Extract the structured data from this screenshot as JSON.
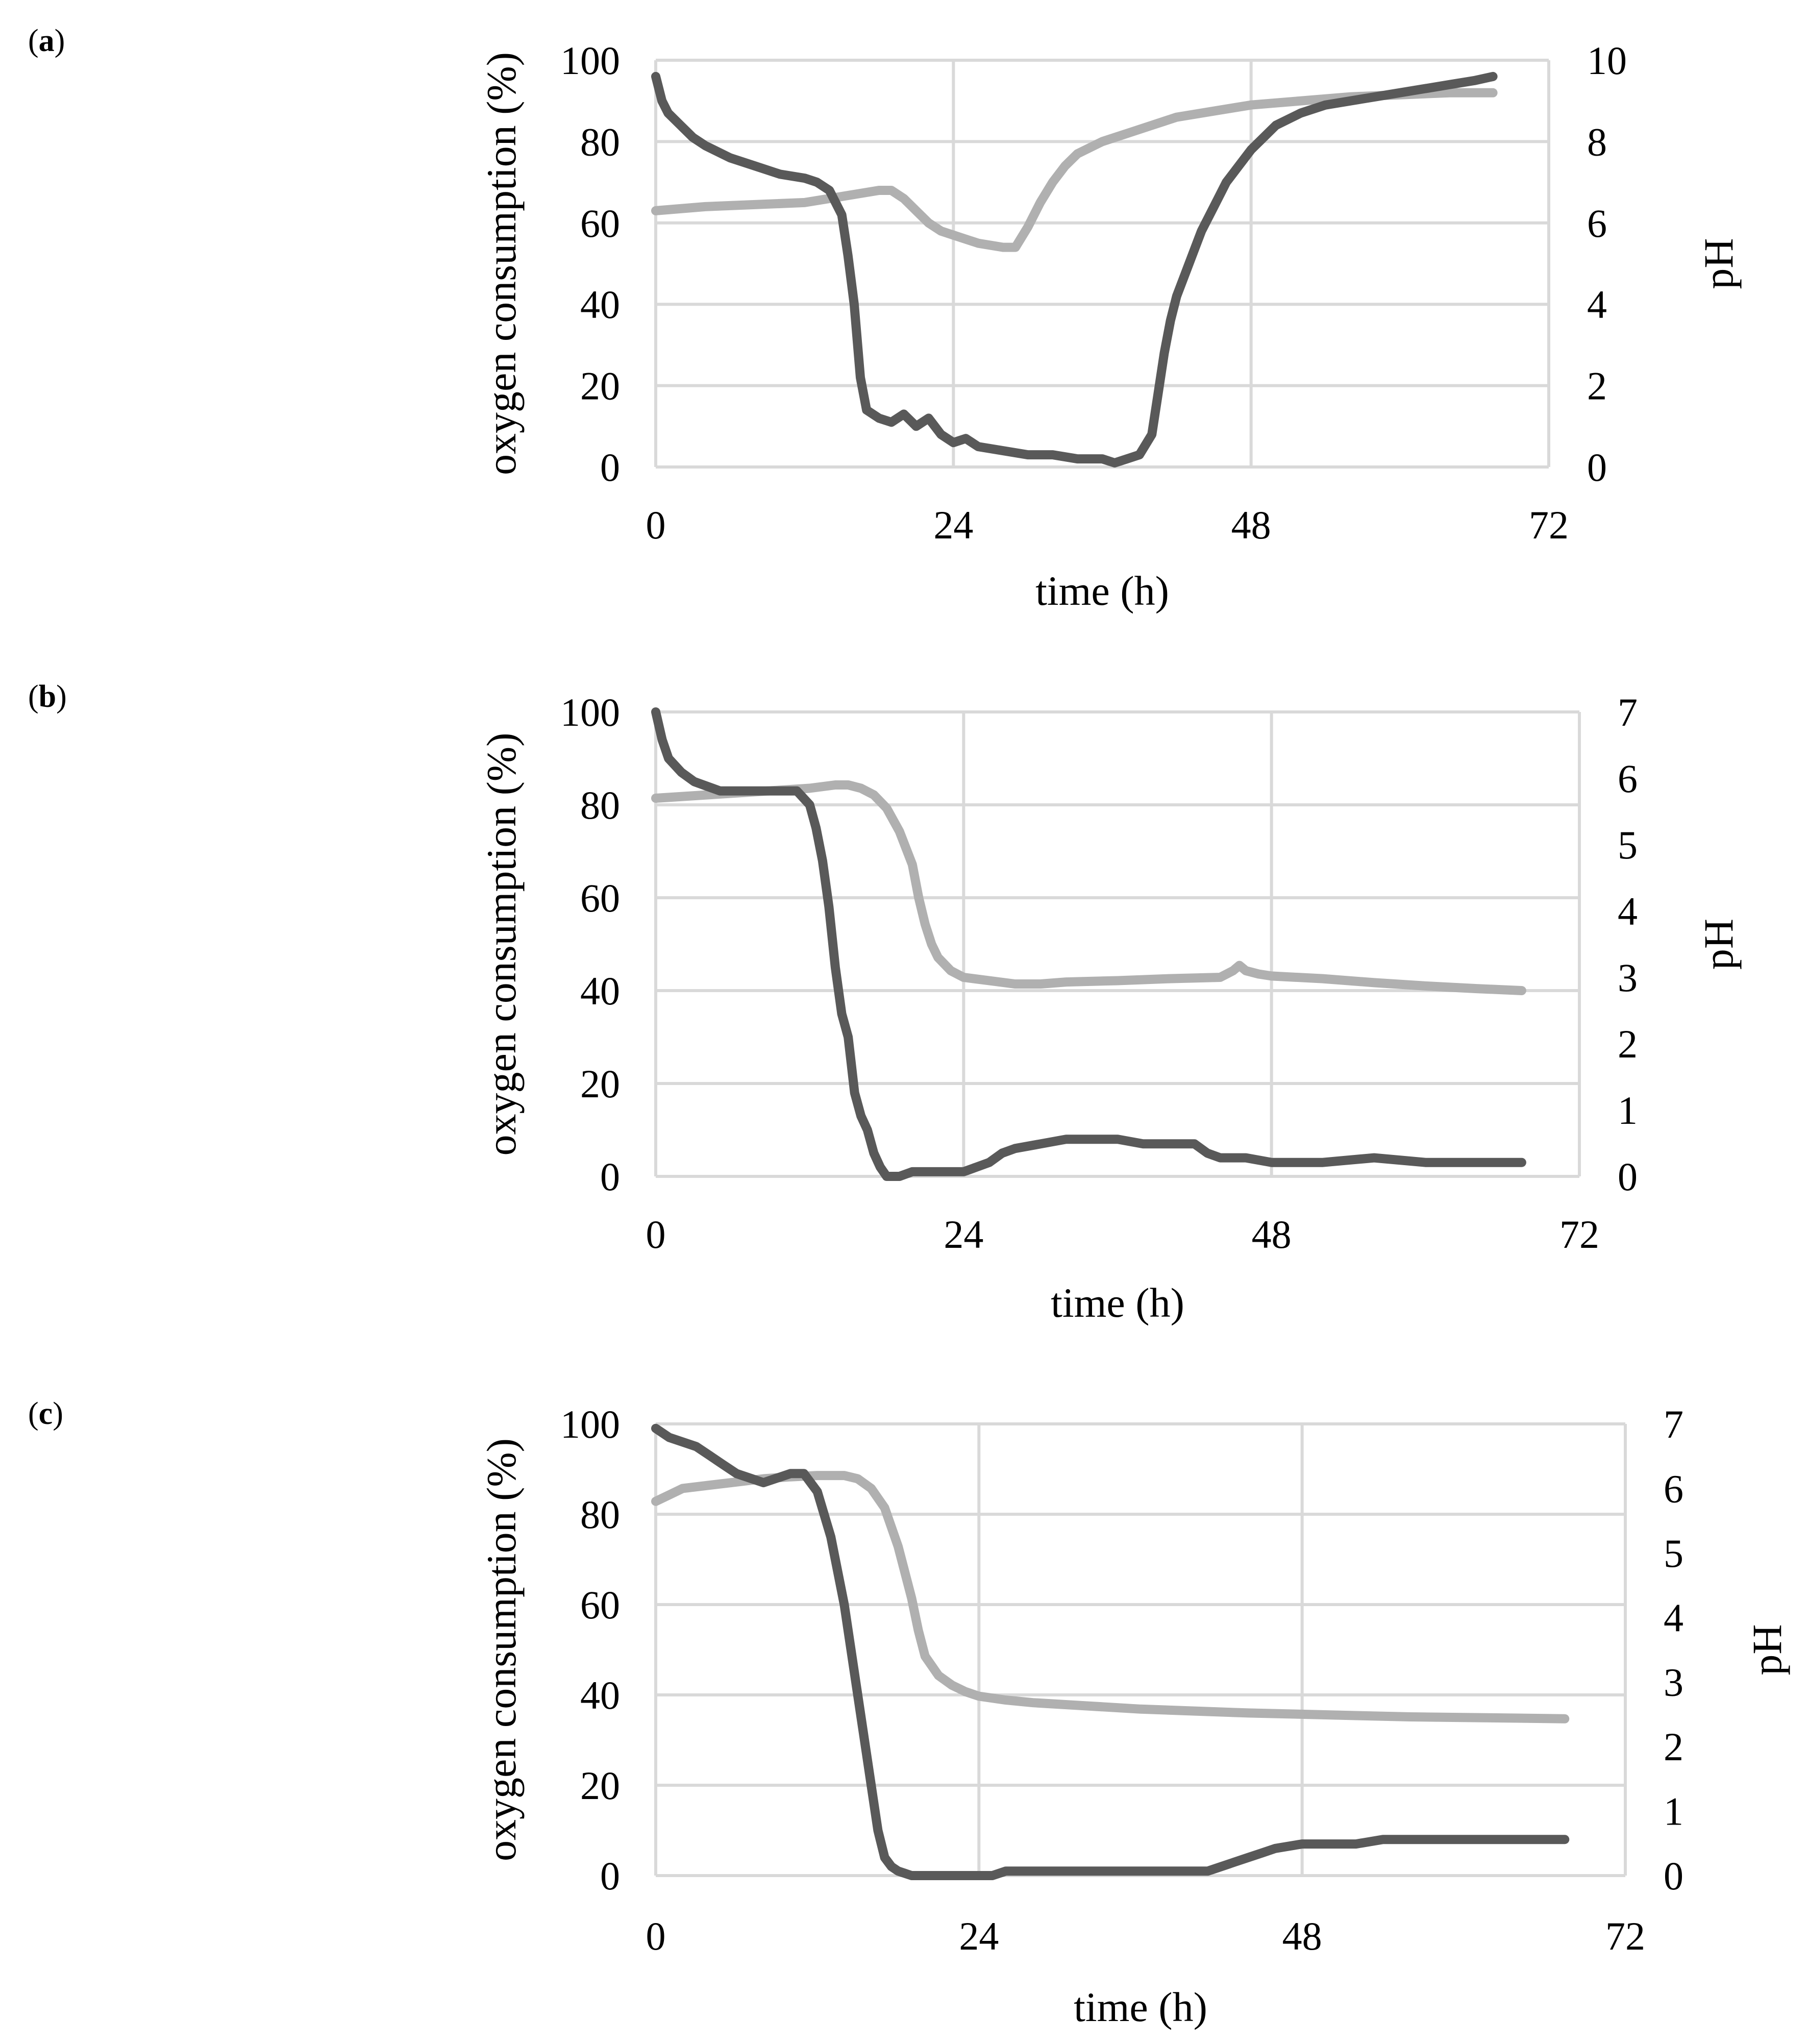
{
  "colors": {
    "oxygen": "#595959",
    "ph": "#b0b0b0",
    "grid": "#d9d9d9"
  },
  "chart_data": [
    {
      "type": "line",
      "panel_label": "a",
      "xlabel": "time (h)",
      "ylabel": "oxygen consumption (%)",
      "y2label": "pH",
      "xlim": [
        0,
        72
      ],
      "ylim": [
        0,
        100
      ],
      "y2lim": [
        0,
        10
      ],
      "xticks": [
        0,
        24,
        48,
        72
      ],
      "yticks": [
        0,
        20,
        40,
        60,
        80,
        100
      ],
      "y2ticks": [
        0,
        2,
        4,
        6,
        8,
        10
      ],
      "grid": "vertical",
      "series": [
        {
          "name": "oxygen consumption",
          "axis": "left",
          "color": "#595959",
          "x": [
            0,
            0.5,
            1,
            2,
            3,
            4,
            6,
            8,
            10,
            12,
            13,
            14,
            15,
            15.5,
            16,
            16.5,
            17,
            18,
            19,
            20,
            21,
            22,
            23,
            24,
            25,
            26,
            28,
            30,
            32,
            34,
            36,
            37,
            38,
            39,
            40,
            40.5,
            41,
            41.5,
            42,
            43,
            44,
            45,
            46,
            47,
            48,
            50,
            52,
            54,
            56,
            58,
            60,
            62,
            64,
            66,
            67.5
          ],
          "y": [
            96,
            90,
            87,
            84,
            81,
            79,
            76,
            74,
            72,
            71,
            70,
            68,
            62,
            52,
            40,
            22,
            14,
            12,
            11,
            13,
            10,
            12,
            8,
            6,
            7,
            5,
            4,
            3,
            3,
            2,
            2,
            1,
            2,
            3,
            8,
            18,
            28,
            36,
            42,
            50,
            58,
            64,
            70,
            74,
            78,
            84,
            87,
            89,
            90,
            91,
            92,
            93,
            94,
            95,
            96
          ]
        },
        {
          "name": "pH",
          "axis": "right",
          "color": "#b0b0b0",
          "x": [
            0,
            4,
            8,
            12,
            14,
            16,
            18,
            19,
            20,
            21,
            22,
            23,
            24,
            26,
            28,
            29,
            30,
            31,
            32,
            33,
            34,
            36,
            38,
            40,
            42,
            44,
            46,
            48,
            52,
            56,
            60,
            64,
            67.5
          ],
          "y": [
            6.3,
            6.4,
            6.45,
            6.5,
            6.6,
            6.7,
            6.8,
            6.8,
            6.6,
            6.3,
            6.0,
            5.8,
            5.7,
            5.5,
            5.4,
            5.4,
            5.9,
            6.5,
            7.0,
            7.4,
            7.7,
            8.0,
            8.2,
            8.4,
            8.6,
            8.7,
            8.8,
            8.9,
            9.0,
            9.1,
            9.15,
            9.2,
            9.2
          ]
        }
      ]
    },
    {
      "type": "line",
      "panel_label": "b",
      "xlabel": "time (h)",
      "ylabel": "oxygen consumption (%)",
      "y2label": "pH",
      "xlim": [
        0,
        72
      ],
      "ylim": [
        0,
        100
      ],
      "y2lim": [
        0,
        7
      ],
      "xticks": [
        0,
        24,
        48,
        72
      ],
      "yticks": [
        0,
        20,
        40,
        60,
        80,
        100
      ],
      "y2ticks": [
        0,
        1,
        2,
        3,
        4,
        5,
        6,
        7
      ],
      "grid": "vertical",
      "series": [
        {
          "name": "oxygen consumption",
          "axis": "left",
          "color": "#595959",
          "x": [
            0,
            0.5,
            1,
            2,
            3,
            4,
            5,
            6,
            8,
            10,
            11,
            12,
            12.5,
            13,
            13.5,
            14,
            14.5,
            15,
            15.5,
            16,
            16.5,
            17,
            17.5,
            18,
            19,
            20,
            22,
            24,
            25,
            26,
            27,
            28,
            30,
            32,
            34,
            36,
            38,
            40,
            42,
            43,
            44,
            46,
            48,
            52,
            56,
            60,
            64,
            67.5
          ],
          "y": [
            100,
            94,
            90,
            87,
            85,
            84,
            83,
            83,
            83,
            83,
            83,
            80,
            75,
            68,
            58,
            45,
            35,
            30,
            18,
            13,
            10,
            5,
            2,
            0,
            0,
            1,
            1,
            1,
            2,
            3,
            5,
            6,
            7,
            8,
            8,
            8,
            7,
            7,
            7,
            5,
            4,
            4,
            3,
            3,
            4,
            3,
            3,
            3
          ]
        },
        {
          "name": "pH",
          "axis": "right",
          "color": "#b0b0b0",
          "x": [
            0,
            4,
            8,
            12,
            14,
            15,
            16,
            17,
            18,
            19,
            20,
            20.5,
            21,
            21.5,
            22,
            23,
            24,
            26,
            28,
            30,
            32,
            36,
            40,
            44,
            45,
            45.5,
            46,
            47,
            48,
            52,
            56,
            60,
            64,
            67.5
          ],
          "y": [
            5.7,
            5.75,
            5.8,
            5.85,
            5.9,
            5.9,
            5.85,
            5.75,
            5.55,
            5.2,
            4.7,
            4.2,
            3.8,
            3.5,
            3.3,
            3.1,
            3.0,
            2.95,
            2.9,
            2.9,
            2.93,
            2.95,
            2.98,
            3.0,
            3.1,
            3.18,
            3.1,
            3.05,
            3.02,
            2.98,
            2.92,
            2.87,
            2.83,
            2.8
          ]
        }
      ]
    },
    {
      "type": "line",
      "panel_label": "c",
      "xlabel": "time (h)",
      "ylabel": "oxygen consumption (%)",
      "y2label": "pH",
      "xlim": [
        0,
        72
      ],
      "ylim": [
        0,
        100
      ],
      "y2lim": [
        0,
        7
      ],
      "xticks": [
        0,
        24,
        48,
        72
      ],
      "yticks": [
        0,
        20,
        40,
        60,
        80,
        100
      ],
      "y2ticks": [
        0,
        1,
        2,
        3,
        4,
        5,
        6,
        7
      ],
      "grid": "vertical",
      "series": [
        {
          "name": "oxygen consumption",
          "axis": "left",
          "color": "#595959",
          "x": [
            0,
            1,
            2,
            3,
            4,
            5,
            6,
            7,
            8,
            9,
            10,
            11,
            12,
            13,
            14,
            15,
            16,
            16.5,
            17,
            17.5,
            18,
            19,
            20,
            22,
            24,
            25,
            26,
            28,
            30,
            32,
            34,
            36,
            38,
            40,
            41,
            42,
            43,
            44,
            45,
            46,
            48,
            50,
            52,
            54,
            56,
            58,
            60,
            62,
            64,
            66,
            67.5
          ],
          "y": [
            99,
            97,
            96,
            95,
            93,
            91,
            89,
            88,
            87,
            88,
            89,
            89,
            85,
            75,
            60,
            40,
            20,
            10,
            4,
            2,
            1,
            0,
            0,
            0,
            0,
            0,
            1,
            1,
            1,
            1,
            1,
            1,
            1,
            1,
            1,
            2,
            3,
            4,
            5,
            6,
            7,
            7,
            7,
            8,
            8,
            8,
            8,
            8,
            8,
            8,
            8
          ]
        },
        {
          "name": "pH",
          "axis": "right",
          "color": "#b0b0b0",
          "x": [
            0,
            1,
            2,
            4,
            6,
            8,
            10,
            12,
            14,
            15,
            16,
            17,
            18,
            19,
            19.5,
            20,
            21,
            22,
            23,
            24,
            26,
            28,
            32,
            36,
            40,
            44,
            48,
            52,
            56,
            60,
            64,
            67.5
          ],
          "y": [
            5.8,
            5.9,
            6.0,
            6.05,
            6.1,
            6.15,
            6.18,
            6.2,
            6.2,
            6.15,
            6.0,
            5.7,
            5.1,
            4.3,
            3.8,
            3.4,
            3.1,
            2.95,
            2.85,
            2.78,
            2.72,
            2.68,
            2.63,
            2.58,
            2.55,
            2.52,
            2.5,
            2.48,
            2.46,
            2.45,
            2.44,
            2.43
          ]
        }
      ]
    }
  ]
}
